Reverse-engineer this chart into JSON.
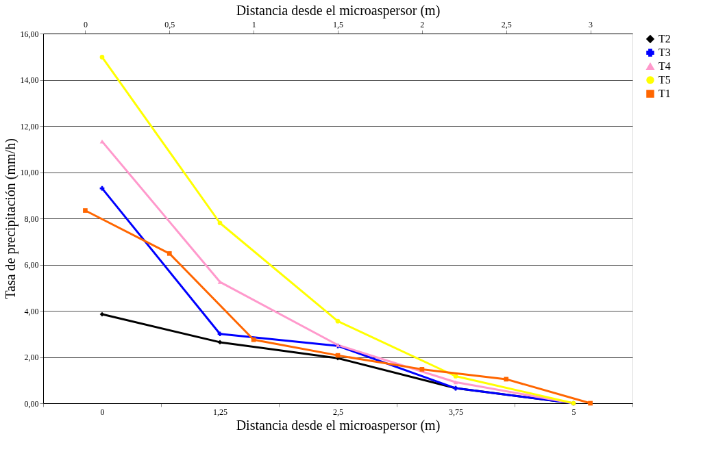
{
  "chart_data": {
    "type": "line",
    "xlabel": "Distancia desde el microaspersor (m)",
    "x2label": "Distancia desde el microaspersor (m)",
    "ylabel": "Tasa de precipitación (mm/h)",
    "categories": [
      "0",
      "1,25",
      "2,5",
      "3,75",
      "5"
    ],
    "x2lim": [
      -0.25,
      3.25
    ],
    "x2ticks": [
      0,
      {
        "value": 0.5,
        "label": "0,5"
      },
      1,
      {
        "value": 1.5,
        "label": "1,5"
      },
      2,
      {
        "value": 2.5,
        "label": "2,5"
      },
      3
    ],
    "ylim": [
      0,
      16
    ],
    "yticks": [
      {
        "value": 0,
        "label": "0,00"
      },
      {
        "value": 2,
        "label": "2,00"
      },
      {
        "value": 4,
        "label": "4,00"
      },
      {
        "value": 6,
        "label": "6,00"
      },
      {
        "value": 8,
        "label": "8,00"
      },
      {
        "value": 10,
        "label": "10,00"
      },
      {
        "value": 12,
        "label": "12,00"
      },
      {
        "value": 14,
        "label": "14,00"
      },
      {
        "value": 16,
        "label": "16,00"
      }
    ],
    "grid": "y",
    "legend": "right",
    "series": [
      {
        "name": "T2",
        "color": "#000000",
        "marker": "diamond",
        "values": [
          3.85,
          2.64,
          1.95,
          0.65,
          0
        ]
      },
      {
        "name": "T3",
        "color": "#0000ff",
        "marker": "cross",
        "values": [
          9.3,
          3.0,
          2.48,
          0.65,
          0
        ]
      },
      {
        "name": "T4",
        "color": "#ff99cc",
        "marker": "triangle",
        "values": [
          11.33,
          5.25,
          2.52,
          0.91,
          0
        ]
      },
      {
        "name": "T5",
        "color": "#ffff00",
        "marker": "circle",
        "values": [
          14.98,
          7.8,
          3.55,
          1.17,
          0
        ]
      },
      {
        "name": "T1",
        "color": "#ff6600",
        "marker": "square",
        "axis": "x2",
        "x": [
          0,
          0.5,
          1,
          1.5,
          2,
          2.5,
          3
        ],
        "values": [
          8.34,
          6.48,
          2.75,
          2.07,
          1.47,
          1.04,
          0
        ]
      }
    ]
  }
}
